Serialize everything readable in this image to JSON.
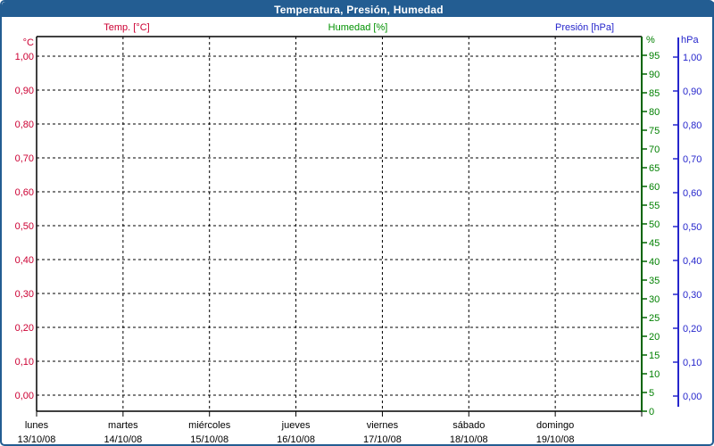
{
  "colors": {
    "frame": "#235d92",
    "title_text": "#ffffff",
    "plot_background": "#ffffff",
    "grid": "#000000",
    "axis_black": "#000000",
    "temp": "#cc0033",
    "humidity_label": "#008000",
    "humidity_axis_line": "#006400",
    "pressure": "#2626cc",
    "date_text": "#000000"
  },
  "chart_data": {
    "type": "line",
    "title": "Temperatura, Presión, Humedad",
    "legend_position": "top",
    "grid": true,
    "series": [
      {
        "name": "Temp. [°C]",
        "axis": "temp",
        "color": "#cc0033",
        "x": [],
        "values": []
      },
      {
        "name": "Humedad [%]",
        "axis": "humidity",
        "color": "#009100",
        "x": [],
        "values": []
      },
      {
        "name": "Presión [hPa]",
        "axis": "pressure",
        "color": "#2626cc",
        "x": [],
        "values": []
      }
    ],
    "y_axes": [
      {
        "id": "temp",
        "unit": "°C",
        "side": "left",
        "color": "#cc0033",
        "min": 0,
        "max": 1,
        "ticks": [
          "1,00",
          "0,90",
          "0,80",
          "0,70",
          "0,60",
          "0,50",
          "0,40",
          "0,30",
          "0,20",
          "0,10",
          "0,00"
        ]
      },
      {
        "id": "humidity",
        "unit": "%",
        "side": "right_inner",
        "color": "#008000",
        "min": 0,
        "max": 100,
        "ticks": [
          "95",
          "90",
          "85",
          "80",
          "75",
          "70",
          "65",
          "60",
          "55",
          "50",
          "45",
          "40",
          "35",
          "30",
          "25",
          "20",
          "15",
          "10",
          "5",
          "0"
        ]
      },
      {
        "id": "pressure",
        "unit": "hPa",
        "side": "right_outer",
        "color": "#2626cc",
        "min": 0,
        "max": 1,
        "ticks": [
          "1,00",
          "0,90",
          "0,80",
          "0,70",
          "0,60",
          "0,50",
          "0,40",
          "0,30",
          "0,20",
          "0,10",
          "0,00"
        ]
      }
    ],
    "x_axis": {
      "categories": [
        {
          "day": "lunes",
          "date": "13/10/08"
        },
        {
          "day": "martes",
          "date": "14/10/08"
        },
        {
          "day": "miércoles",
          "date": "15/10/08"
        },
        {
          "day": "jueves",
          "date": "16/10/08"
        },
        {
          "day": "viernes",
          "date": "17/10/08"
        },
        {
          "day": "sábado",
          "date": "18/10/08"
        },
        {
          "day": "domingo",
          "date": "19/10/08"
        }
      ]
    }
  }
}
